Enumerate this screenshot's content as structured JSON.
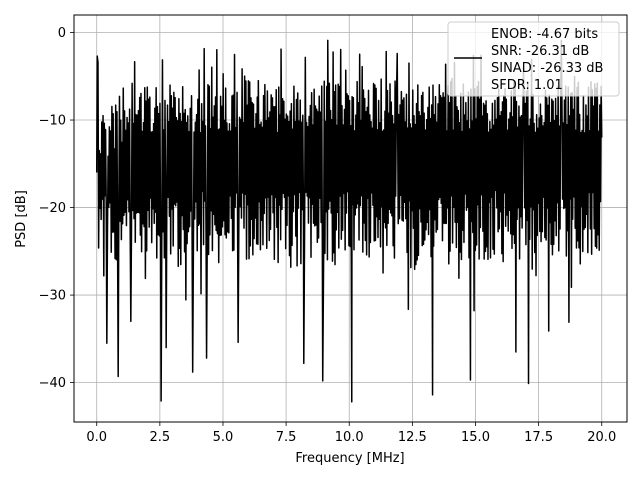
{
  "chart_data": {
    "type": "line",
    "title": "",
    "xlabel": "Frequency [MHz]",
    "ylabel": "PSD [dB]",
    "xlim": [
      -0.9,
      21.0
    ],
    "ylim": [
      -44.5,
      2.0
    ],
    "xticks": [
      0.0,
      2.5,
      5.0,
      7.5,
      10.0,
      12.5,
      15.0,
      17.5,
      20.0
    ],
    "xtick_labels": [
      "0.0",
      "2.5",
      "5.0",
      "7.5",
      "10.0",
      "12.5",
      "15.0",
      "17.5",
      "20.0"
    ],
    "yticks": [
      0,
      -10,
      -20,
      -30,
      -40
    ],
    "ytick_labels": [
      "0",
      "−10",
      "−20",
      "−30",
      "−40"
    ],
    "grid": true,
    "legend_position": "top-right",
    "legend_lines": [
      "ENOB: -4.67 bits",
      "SNR: -26.31 dB",
      "SINAD: -26.33 dB",
      "SFDR: 1.01"
    ],
    "series": [
      {
        "color": "#000000",
        "x_start": 0.0,
        "x_end": 20.0,
        "n_points": 800,
        "generation": "deterministic pseudo-random noise floor",
        "mean_db": -14.5,
        "upper_envelope_db": -5.5,
        "lower_envelope_db": -26.0,
        "notable_points": [
          [
            0.0,
            -16.0
          ],
          [
            0.02,
            -2.7
          ],
          [
            0.05,
            -3.4
          ],
          [
            0.28,
            -27.8
          ],
          [
            0.4,
            -35.5
          ],
          [
            0.85,
            -39.3
          ],
          [
            1.35,
            -33.0
          ],
          [
            2.55,
            -42.1
          ],
          [
            2.75,
            -36.0
          ],
          [
            3.8,
            -38.8
          ],
          [
            4.35,
            -37.2
          ],
          [
            5.6,
            -35.4
          ],
          [
            6.4,
            -5.5
          ],
          [
            7.3,
            -1.9
          ],
          [
            8.2,
            -37.8
          ],
          [
            8.95,
            -39.8
          ],
          [
            9.15,
            -0.9
          ],
          [
            10.1,
            -42.2
          ],
          [
            11.9,
            -2.4
          ],
          [
            13.3,
            -41.4
          ],
          [
            14.8,
            -39.7
          ],
          [
            16.6,
            -36.5
          ],
          [
            16.9,
            -4.0
          ],
          [
            17.1,
            -40.1
          ],
          [
            17.9,
            -34.1
          ],
          [
            18.4,
            -0.9
          ],
          [
            18.7,
            -33.1
          ],
          [
            20.0,
            -12.0
          ]
        ]
      }
    ]
  }
}
